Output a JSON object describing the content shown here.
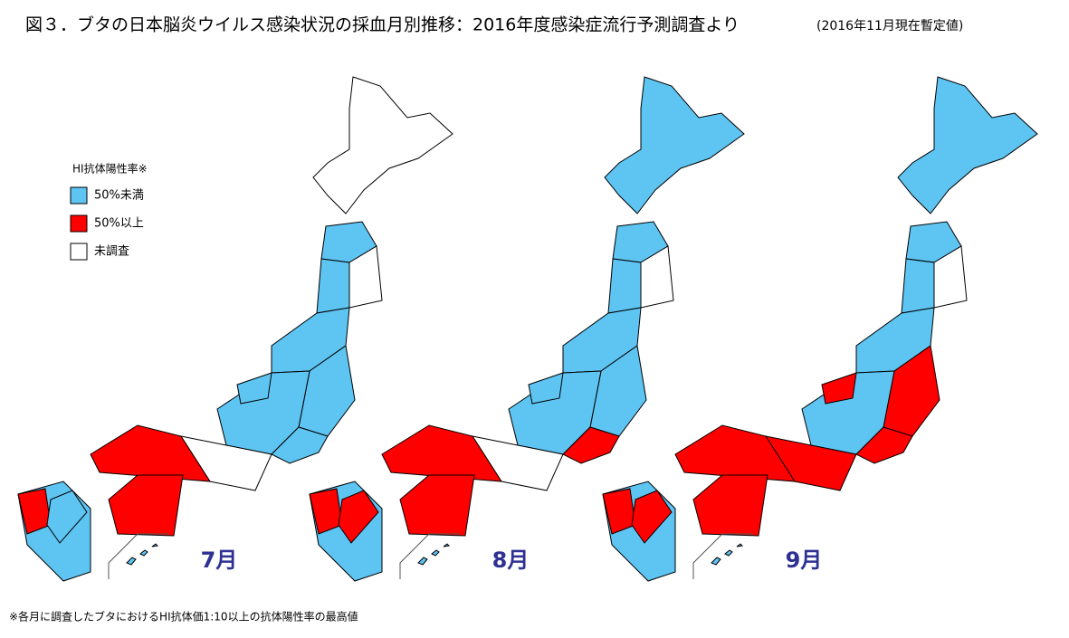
{
  "header": {
    "title": "図３．ブタの日本脳炎ウイルス感染状況の採血月別推移：2016年度感染症流行予測調査より",
    "subtitle": "(2016年11月現在暫定値)"
  },
  "legend": {
    "title": "HI抗体陽性率※",
    "items": [
      {
        "label": "50%未満",
        "color": "#5ec4f2"
      },
      {
        "label": "50%以上",
        "color": "#ff0000"
      },
      {
        "label": "未調査",
        "color": "#ffffff"
      }
    ]
  },
  "maps": [
    {
      "label": "7月"
    },
    {
      "label": "8月"
    },
    {
      "label": "9月"
    }
  ],
  "footnote": "※各月に調査したブタにおけるHI抗体価1:10以上の抗体陽性率の最高値"
}
